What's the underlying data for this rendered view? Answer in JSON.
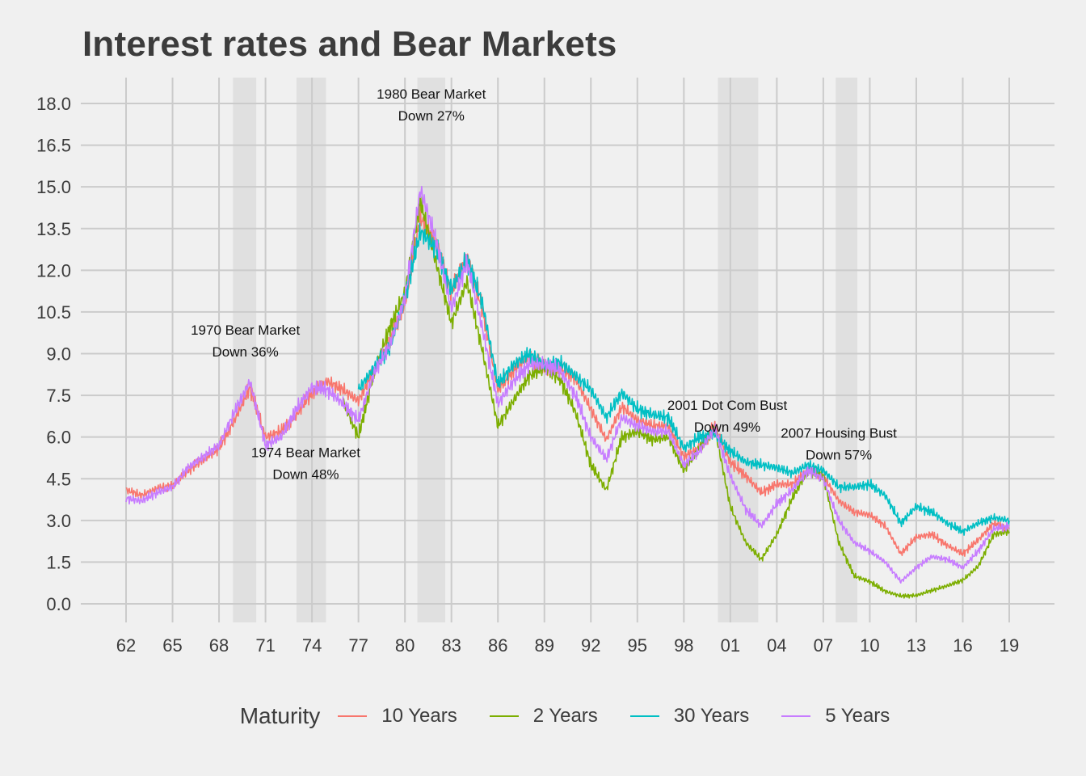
{
  "chart_data": {
    "type": "line",
    "title": "Interest rates and Bear Markets",
    "xlabel": "",
    "ylabel": "",
    "xlim": [
      1962.0,
      2019.0
    ],
    "ylim": [
      0.0,
      18.0
    ],
    "grid": true,
    "x_ticks": [
      "62",
      "65",
      "68",
      "71",
      "74",
      "77",
      "80",
      "83",
      "86",
      "89",
      "92",
      "95",
      "98",
      "01",
      "04",
      "07",
      "10",
      "13",
      "16",
      "19"
    ],
    "y_ticks": [
      "0.0",
      "1.5",
      "3.0",
      "4.5",
      "6.0",
      "7.5",
      "9.0",
      "10.5",
      "12.0",
      "13.5",
      "15.0",
      "16.5",
      "18.0"
    ],
    "legend": {
      "title": "Maturity",
      "position": "bottom",
      "items": [
        "10 Years",
        "2 Years",
        "30 Years",
        "5 Years"
      ]
    },
    "bear_markets": [
      {
        "start": 1968.9,
        "end": 1970.4
      },
      {
        "start": 1973.0,
        "end": 1974.9
      },
      {
        "start": 1980.8,
        "end": 1982.6
      },
      {
        "start": 2000.2,
        "end": 2002.8
      },
      {
        "start": 2007.8,
        "end": 2009.2
      }
    ],
    "annotations": [
      {
        "line1": "1970 Bear Market",
        "line2": "Down 36%",
        "x": 1969.7,
        "y": 9.1
      },
      {
        "line1": "1974 Bear Market",
        "line2": "Down 48%",
        "x": 1973.6,
        "y": 4.7
      },
      {
        "line1": "1980 Bear Market",
        "line2": "Down 27%",
        "x": 1981.7,
        "y": 17.6
      },
      {
        "line1": "2001 Dot Com Bust",
        "line2": "Down 49%",
        "x": 2000.8,
        "y": 6.4
      },
      {
        "line1": "2007 Housing Bust",
        "line2": "Down 57%",
        "x": 2008.0,
        "y": 5.4
      }
    ],
    "series": [
      {
        "name": "10 Years",
        "color": "#F8766D",
        "points": [
          [
            1962,
            4.1
          ],
          [
            1963,
            3.9
          ],
          [
            1964,
            4.15
          ],
          [
            1965,
            4.25
          ],
          [
            1966,
            4.8
          ],
          [
            1967,
            5.2
          ],
          [
            1968,
            5.6
          ],
          [
            1969,
            6.6
          ],
          [
            1970,
            7.8
          ],
          [
            1971,
            6.0
          ],
          [
            1972,
            6.2
          ],
          [
            1973,
            6.8
          ],
          [
            1974,
            7.6
          ],
          [
            1975,
            8.0
          ],
          [
            1976,
            7.7
          ],
          [
            1977,
            7.3
          ],
          [
            1978,
            8.4
          ],
          [
            1979,
            9.4
          ],
          [
            1980,
            10.8
          ],
          [
            1981,
            13.9
          ],
          [
            1982,
            13.0
          ],
          [
            1983,
            11.2
          ],
          [
            1984,
            12.5
          ],
          [
            1985,
            10.6
          ],
          [
            1986,
            7.7
          ],
          [
            1987,
            8.4
          ],
          [
            1988,
            8.9
          ],
          [
            1989,
            8.5
          ],
          [
            1990,
            8.5
          ],
          [
            1991,
            8.1
          ],
          [
            1992,
            7.0
          ],
          [
            1993,
            5.9
          ],
          [
            1994,
            7.1
          ],
          [
            1995,
            6.6
          ],
          [
            1996,
            6.4
          ],
          [
            1997,
            6.4
          ],
          [
            1998,
            5.3
          ],
          [
            1999,
            5.6
          ],
          [
            2000,
            6.4
          ],
          [
            2001,
            5.1
          ],
          [
            2002,
            4.6
          ],
          [
            2003,
            4.0
          ],
          [
            2004,
            4.3
          ],
          [
            2005,
            4.3
          ],
          [
            2006,
            4.8
          ],
          [
            2007,
            4.6
          ],
          [
            2008,
            3.7
          ],
          [
            2009,
            3.3
          ],
          [
            2010,
            3.2
          ],
          [
            2011,
            2.8
          ],
          [
            2012,
            1.8
          ],
          [
            2013,
            2.4
          ],
          [
            2014,
            2.5
          ],
          [
            2015,
            2.1
          ],
          [
            2016,
            1.8
          ],
          [
            2017,
            2.3
          ],
          [
            2018,
            2.9
          ],
          [
            2019,
            2.7
          ]
        ]
      },
      {
        "name": "2 Years",
        "color": "#7CAE00",
        "points": [
          [
            1976,
            7.3
          ],
          [
            1977,
            6.0
          ],
          [
            1978,
            8.3
          ],
          [
            1979,
            9.9
          ],
          [
            1980,
            11.2
          ],
          [
            1981,
            14.5
          ],
          [
            1982,
            12.3
          ],
          [
            1983,
            10.1
          ],
          [
            1984,
            11.6
          ],
          [
            1985,
            9.1
          ],
          [
            1986,
            6.4
          ],
          [
            1987,
            7.3
          ],
          [
            1988,
            8.2
          ],
          [
            1989,
            8.5
          ],
          [
            1990,
            8.1
          ],
          [
            1991,
            6.9
          ],
          [
            1992,
            5.0
          ],
          [
            1993,
            4.1
          ],
          [
            1994,
            6.0
          ],
          [
            1995,
            6.2
          ],
          [
            1996,
            5.9
          ],
          [
            1997,
            6.0
          ],
          [
            1998,
            4.8
          ],
          [
            1999,
            5.6
          ],
          [
            2000,
            6.3
          ],
          [
            2001,
            3.5
          ],
          [
            2002,
            2.2
          ],
          [
            2003,
            1.6
          ],
          [
            2004,
            2.5
          ],
          [
            2005,
            3.8
          ],
          [
            2006,
            4.8
          ],
          [
            2007,
            4.6
          ],
          [
            2008,
            2.2
          ],
          [
            2009,
            1.0
          ],
          [
            2010,
            0.8
          ],
          [
            2011,
            0.45
          ],
          [
            2012,
            0.28
          ],
          [
            2013,
            0.3
          ],
          [
            2014,
            0.48
          ],
          [
            2015,
            0.65
          ],
          [
            2016,
            0.85
          ],
          [
            2017,
            1.35
          ],
          [
            2018,
            2.5
          ],
          [
            2019,
            2.6
          ]
        ]
      },
      {
        "name": "30 Years",
        "color": "#00BFC4",
        "points": [
          [
            1977,
            7.7
          ],
          [
            1978,
            8.5
          ],
          [
            1979,
            9.2
          ],
          [
            1980,
            11.0
          ],
          [
            1981,
            13.4
          ],
          [
            1982,
            12.8
          ],
          [
            1983,
            11.3
          ],
          [
            1984,
            12.4
          ],
          [
            1985,
            10.8
          ],
          [
            1986,
            7.9
          ],
          [
            1987,
            8.6
          ],
          [
            1988,
            9.0
          ],
          [
            1989,
            8.6
          ],
          [
            1990,
            8.7
          ],
          [
            1991,
            8.2
          ],
          [
            1992,
            7.7
          ],
          [
            1993,
            6.7
          ],
          [
            1994,
            7.6
          ],
          [
            1995,
            7.0
          ],
          [
            1996,
            6.8
          ],
          [
            1997,
            6.7
          ],
          [
            1998,
            5.6
          ],
          [
            1999,
            6.0
          ],
          [
            2000,
            6.1
          ],
          [
            2001,
            5.5
          ],
          [
            2002,
            5.1
          ],
          [
            2003,
            5.0
          ],
          [
            2004,
            4.9
          ],
          [
            2005,
            4.7
          ],
          [
            2006,
            5.0
          ],
          [
            2007,
            4.8
          ],
          [
            2008,
            4.2
          ],
          [
            2009,
            4.2
          ],
          [
            2010,
            4.3
          ],
          [
            2011,
            3.9
          ],
          [
            2012,
            2.9
          ],
          [
            2013,
            3.5
          ],
          [
            2014,
            3.3
          ],
          [
            2015,
            2.9
          ],
          [
            2016,
            2.6
          ],
          [
            2017,
            2.9
          ],
          [
            2018,
            3.1
          ],
          [
            2019,
            3.0
          ]
        ]
      },
      {
        "name": "5 Years",
        "color": "#C77CFF",
        "points": [
          [
            1962,
            3.8
          ],
          [
            1963,
            3.7
          ],
          [
            1964,
            4.0
          ],
          [
            1965,
            4.2
          ],
          [
            1966,
            4.9
          ],
          [
            1967,
            5.3
          ],
          [
            1968,
            5.7
          ],
          [
            1969,
            6.9
          ],
          [
            1970,
            8.0
          ],
          [
            1971,
            5.7
          ],
          [
            1972,
            6.0
          ],
          [
            1973,
            7.0
          ],
          [
            1974,
            7.8
          ],
          [
            1975,
            7.7
          ],
          [
            1976,
            7.2
          ],
          [
            1977,
            6.6
          ],
          [
            1978,
            8.3
          ],
          [
            1979,
            9.3
          ],
          [
            1980,
            11.0
          ],
          [
            1981,
            14.9
          ],
          [
            1982,
            13.1
          ],
          [
            1983,
            10.6
          ],
          [
            1984,
            12.3
          ],
          [
            1985,
            9.9
          ],
          [
            1986,
            7.2
          ],
          [
            1987,
            8.0
          ],
          [
            1988,
            8.6
          ],
          [
            1989,
            8.6
          ],
          [
            1990,
            8.4
          ],
          [
            1991,
            7.5
          ],
          [
            1992,
            6.0
          ],
          [
            1993,
            5.2
          ],
          [
            1994,
            6.7
          ],
          [
            1995,
            6.4
          ],
          [
            1996,
            6.2
          ],
          [
            1997,
            6.2
          ],
          [
            1998,
            5.0
          ],
          [
            1999,
            5.5
          ],
          [
            2000,
            6.3
          ],
          [
            2001,
            4.6
          ],
          [
            2002,
            3.4
          ],
          [
            2003,
            2.8
          ],
          [
            2004,
            3.6
          ],
          [
            2005,
            4.1
          ],
          [
            2006,
            4.8
          ],
          [
            2007,
            4.5
          ],
          [
            2008,
            3.0
          ],
          [
            2009,
            2.2
          ],
          [
            2010,
            1.9
          ],
          [
            2011,
            1.5
          ],
          [
            2012,
            0.8
          ],
          [
            2013,
            1.3
          ],
          [
            2014,
            1.7
          ],
          [
            2015,
            1.6
          ],
          [
            2016,
            1.3
          ],
          [
            2017,
            1.9
          ],
          [
            2018,
            2.7
          ],
          [
            2019,
            2.8
          ]
        ]
      }
    ]
  }
}
